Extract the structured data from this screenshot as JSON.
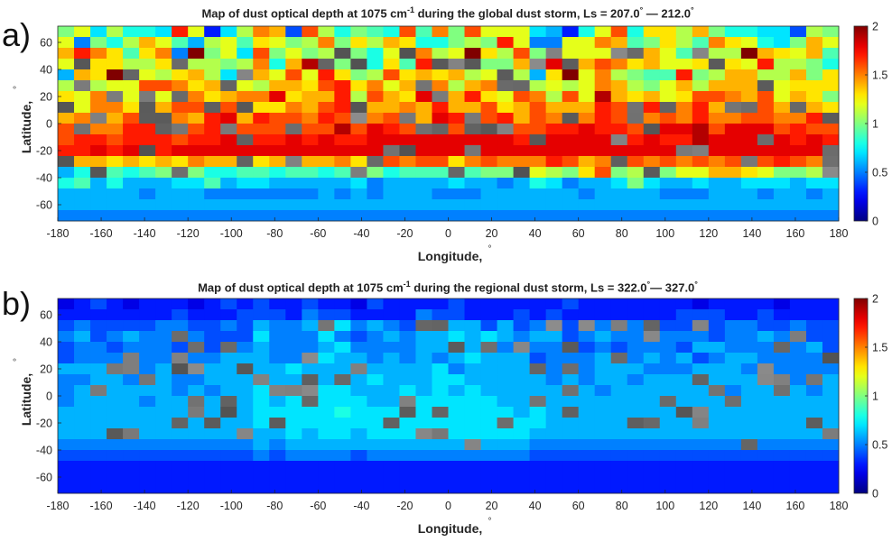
{
  "panels": [
    {
      "letter": "a)",
      "title_pre": "Map of dust optical depth at 1075 cm",
      "title_sup": "-1",
      "title_mid": " during the global dust storm, Ls = 207.0",
      "title_deg1": "°",
      "title_dash": " — 212.0",
      "title_deg2": "°"
    },
    {
      "letter": "b)",
      "title_pre": "Map of dust optical depth at 1075 cm",
      "title_sup": "-1",
      "title_mid": " during the regional dust storm, Ls = 322.0",
      "title_deg1": "°",
      "title_dash": "— 327.0",
      "title_deg2": "°"
    }
  ],
  "chart_data": [
    {
      "type": "heatmap",
      "title": "Map of dust optical depth at 1075 cm-1 during the global dust storm, Ls = 207.0° — 212.0°",
      "xlabel": "Longitude, °",
      "ylabel": "Latitude, °",
      "xlim": [
        -180,
        180
      ],
      "ylim": [
        -72,
        72
      ],
      "xticks": [
        -180,
        -160,
        -140,
        -120,
        -100,
        -80,
        -60,
        -40,
        -20,
        0,
        20,
        40,
        60,
        80,
        100,
        120,
        140,
        160,
        180
      ],
      "yticks": [
        60,
        40,
        20,
        0,
        -20,
        -40,
        -60
      ],
      "colorbar": {
        "range": [
          0,
          2
        ],
        "ticks": [
          "0",
          "0.5",
          "1",
          "1.5",
          "2"
        ],
        "colormap": "jet"
      },
      "cell_size_deg": {
        "lon": 7.5,
        "lat": 4
      },
      "rows_lat_descending": [
        "1.0 1.2 0.7 1.1 0.8 0.8 0.7 1.7 1.2 0.3 0.7 1.1 1.5 1.4 0.4 1.6 1.1 0.8 1.0 0.9 0.8 1.6 0.9 1.5 1.0 1.6 1.2 1.2 1.2 0.7 0.6 0.3 0.8 1.2 1.6 0.8 1.3 1.3 1.1 1.4 1.0 0.8 0.8 0.7 0.7 0.4 1.1 1.0",
        "1.2 0.5 1.0 0.8 1.1 1.4 1.2 0.9 0.6 1.1 1.2 0.9 1.3 1.2 1.0 1.1 1.5 1.0 1.3 1.1 1.4 1.3 0.8 0.8 1.0 1.1 1.0 1.7 1.2 0.5 0.5 1.2 1.2 1.5 1.4 0.9 1.0 1.3 1.1 0.9 1.5 1.3 1.2 0.8 0.7 1.0 1.4 1.2",
        "1.4 1.7 1.5 1.3 0.9 1.3 1.5 0.5 2.0 1.0 1.2 0.7 1.6 1.0 1.2 1.0 1.1 0.8 1.0 0.8 1.2 1.4 1.5 1.1 1.2 2.0 1.3 1.1 1.6 1.0 1.6 1.2 1.2 1.2 1.8 1.2 1.4 1.2 0.9 1.5 1.1 1.1 2.0 1.4 1.3 1.2 1.4 0.9",
        "1.2 0.8 1.3 1.3 1.1 1.1 1.3 1.2 1.1 1.1 1.0 1.1 1.5 0.8 1.4 1.9 1.3 1.0 1.3 0.8 1.3 0.9 1.7 0.8 1.1 1.2 1.0 1.0 1.4 1.5 1.8 1.3 1.4 1.6 1.5 1.3 1.4 1.2 1.2 1.3 1.1 1.3 1.2 1.7 1.1 1.1 1.0 0.8",
        "0.6 1.4 1.3 2.0 1.0 1.2 1.1 1.3 1.4 1.1 0.7 1.6 1.4 1.2 1.6 1.2 1.7 1.3 1.0 1.1 1.6 1.3 1.4 1.3 1.4 1.1 1.2 1.4 1.1 0.6 1.3 2.0 1.2 1.5 1.1 1.0 0.9 0.9 1.7 1.0 1.1 1.4 1.4 1.1 1.1 1.4 1.0 1.3",
        "1.1 1.5 1.1 1.2 1.2 1.6 1.6 1.5 1.3 1.4 1.5 1.2 1.1 1.4 1.4 1.3 1.6 1.7 1.3 1.5 1.2 1.4 1.1 1.5 1.1 1.4 1.5 1.0 1.4 1.1 1.2 1.1 1.2 1.5 1.4 1.1 1.0 1.2 1.4 1.1 1.4 1.4 1.4 1.6 1.2 1.3 1.3 1.3",
        "1.3 1.2 1.5 1.3 1.2 1.4 1.2 1.3 1.5 1.3 1.4 1.5 1.5 1.8 1.3 1.4 1.4 1.7 1.1 1.6 1.4 1.3 1.8 1.5 1.4 1.7 1.3 1.2 1.6 1.5 1.1 1.6 1.2 1.9 1.4 1.3 1.4 1.2 1.3 1.6 1.6 1.5 1.4 1.6 1.2 1.4 1.3 1.0",
        "1.4 1.2 1.5 1.5 1.3 1.4 1.4 1.6 1.6 1.6 1.6 1.3 1.3 1.3 1.5 1.4 1.6 1.7 1.7 1.4 1.4 1.5 1.4 1.7 1.4 1.4 1.6 1.3 1.4 1.6 1.4 1.4 1.4 1.7 1.6 1.7 1.7 1.4 1.5 1.7 1.4 1.4 1.6 1.6 1.4 1.2 1.4 1.3",
        "1.4 1.5 1.5 1.4 1.6 1.4 1.5 1.5 1.4 1.7 1.8 1.4 1.7 1.6 1.6 1.5 1.7 1.6 1.5 1.5 1.6 1.5 1.4 1.8 1.7 1.7 1.6 1.7 1.4 1.6 1.5 1.7 1.5 1.7 1.6 1.5 1.5 1.6 1.5 1.7 1.5 1.5 1.6 1.6 1.5 1.5 1.7 1.5",
        "1.6 1.5 1.5 1.5 1.7 1.7 1.6 1.7 1.6 1.7 1.7 1.6 1.6 1.6 1.6 1.6 1.6 1.9 1.6 1.8 1.7 1.6 1.7 1.9 1.6 1.5 1.7 1.6 1.6 1.6 1.7 1.7 1.8 1.7 1.7 1.6 1.6 1.8 1.8 1.9 1.6 1.8 1.8 1.8 1.6 1.7 1.6 1.6",
        "1.6 1.7 1.7 1.6 1.7 1.7 1.7 1.6 1.7 1.7 1.8 1.7 1.7 1.7 1.8 1.7 1.8 1.7 1.7 1.8 1.8 1.8 1.8 1.8 1.8 1.8 1.8 1.8 1.7 1.7 1.8 1.8 1.8 1.8 1.7 1.7 1.8 1.7 1.7 1.9 1.8 1.8 1.8 1.8 1.8 1.7 1.8 1.7",
        "1.7 1.7 1.8 1.7 1.8 1.7 1.7 1.8 1.8 1.8 1.8 1.8 1.8 1.8 1.8 1.8 1.8 1.8 1.8 1.8 1.8 1.8 1.8 1.8 1.8 1.8 1.8 1.8 1.8 1.8 1.8 1.8 1.8 1.8 1.8 1.8 1.8 1.8 1.8 1.8 1.8 1.8 1.8 1.8 1.8 1.8 1.8 1.8",
        "1.3 1.4 1.4 1.3 1.4 1.3 1.4 1.3 1.5 1.4 1.4 1.4 1.3 1.4 1.4 1.4 1.4 1.5 1.3 1.6 1.6 1.5 1.6 1.6 1.3 1.5 1.6 1.5 1.5 1.5 1.7 1.6 1.4 1.5 1.6 1.6 1.5 1.6 1.5 1.6 1.5 1.6 1.6 1.6 1.7 1.6 1.5 1.4",
        "0.6 0.8 0.9 0.9 0.8 0.9 1.0 0.9 1.0 0.8 0.8 0.9 0.9 0.8 0.9 0.9 0.8 0.9 1.0 1.0 0.8 0.9 0.9 0.9 1.0 0.9 1.0 1.0 1.2 1.2 1.1 1.0 1.3 1.6 1.0 1.1 1.1 1.0 1.2 1.2 1.4 1.4 1.3 1.2 1.0 1.0 1.1 1.3",
        "0.8 0.9 0.6 0.8 0.6 0.6 0.6 0.7 0.7 0.9 0.6 0.7 0.7 0.6 0.6 0.6 0.6 0.6 0.7 0.5 0.6 0.6 0.6 0.6 0.7 0.6 0.6 0.5 0.6 0.8 0.7 0.5 0.6 0.6 0.7 1.0 0.7 0.6 0.6 0.7 0.6 0.6 0.7 0.7 0.7 0.6 0.7 0.7",
        "0.6 0.6 0.6 0.6 0.6 0.5 0.6 0.6 0.6 0.5 0.5 0.5 0.5 0.5 0.5 0.5 0.6 0.5 0.6 0.5 0.6 0.6 0.6 0.5 0.5 0.5 0.6 0.6 0.6 0.6 0.6 0.6 0.5 0.6 0.6 0.6 0.6 0.5 0.5 0.5 0.6 0.6 0.6 0.5 0.6 0.6 0.5 0.6",
        "0.6 0.6 0.6 0.6 0.6 0.6 0.6 0.6 0.6 0.6 0.6 0.6 0.6 0.6 0.6 0.6 0.6 0.6 0.6 0.6 0.6 0.6 0.6 0.6 0.6 0.6 0.6 0.6 0.6 0.6 0.6 0.6 0.6 0.6 0.6 0.6 0.6 0.6 0.6 0.6 0.6 0.6 0.6 0.6 0.6 0.6 0.6 0.6",
        "0.5 0.5 0.5 0.5 0.5 0.5 0.5 0.5 0.5 0.5 0.5 0.5 0.5 0.5 0.5 0.5 0.5 0.5 0.5 0.5 0.5 0.5 0.5 0.5 0.5 0.5 0.5 0.5 0.5 0.5 0.5 0.5 0.5 0.5 0.5 0.5 0.5 0.5 0.5 0.5 0.5 0.5 0.5 0.5 0.5 0.5 0.5 0.5"
      ]
    },
    {
      "type": "heatmap",
      "title": "Map of dust optical depth at 1075 cm-1 during the regional dust storm, Ls = 322.0°— 327.0°",
      "xlabel": "Longitude, °",
      "ylabel": "Latitude, °",
      "xlim": [
        -180,
        180
      ],
      "ylim": [
        -72,
        72
      ],
      "xticks": [
        -180,
        -160,
        -140,
        -120,
        -100,
        -80,
        -60,
        -40,
        -20,
        0,
        20,
        40,
        60,
        80,
        100,
        120,
        140,
        160,
        180
      ],
      "yticks": [
        60,
        40,
        20,
        0,
        -20,
        -40,
        -60
      ],
      "colorbar": {
        "range": [
          0,
          2
        ],
        "ticks": [
          "0",
          "0.5",
          "1",
          "1.5",
          "2"
        ],
        "colormap": "jet"
      },
      "cell_size_deg": {
        "lon": 7.5,
        "lat": 4
      },
      "rows_lat_descending": [
        "0.2 0.3 0.4 0.3 0.2 0.3 0.3 0.3 0.2 0.3 0.4 0.3 0.4 0.3 0.3 0.4 0.3 0.3 0.2 0.4 0.3 0.3 0.3 0.3 0.4 0.3 0.3 0.3 0.3 0.3 0.3 0.4 0.3 0.3 0.3 0.3 0.3 0.3 0.3 0.2 0.3 0.3 0.3 0.3 0.2 0.3 0.3 0.3",
        "0.3 0.3 0.3 0.3 0.3 0.3 0.3 0.4 0.3 0.3 0.3 0.4 0.4 0.4 0.3 0.5 0.4 0.4 0.3 0.3 0.3 0.3 0.5 0.4 0.4 0.3 0.3 0.3 0.4 0.3 0.4 0.3 0.3 0.3 0.3 0.3 0.3 0.3 0.4 0.4 0.4 0.3 0.3 0.4 0.3 0.3 0.3 0.3",
        "0.4 0.5 0.4 0.4 0.4 0.4 0.5 0.5 0.4 0.4 0.5 0.4 0.6 0.5 0.5 0.6 0.6 0.7 0.5 0.6 0.5 0.4 0.5 0.5 0.6 0.6 0.4 0.6 0.4 0.5 0.5 0.4 0.4 0.5 0.4 0.5 0.5 0.4 0.4 0.4 0.4 0.5 0.5 0.4 0.4 0.5 0.4 0.4",
        "0.5 0.6 0.4 0.5 0.6 0.5 0.5 0.4 0.5 0.4 0.4 0.4 0.7 0.5 0.5 0.5 0.7 0.5 0.4 0.5 0.6 0.5 0.6 0.6 0.7 0.6 0.7 0.6 0.5 0.6 0.6 0.4 0.5 0.6 0.5 0.5 0.5 0.5 0.5 0.5 0.4 0.5 0.5 0.6 0.5 0.4 0.4 0.4",
        "0.4 0.5 0.5 0.4 0.5 0.5 0.5 0.4 0.5 0.4 0.6 0.5 0.6 0.5 0.5 0.5 0.6 0.7 0.5 0.5 0.5 0.5 0.6 0.6 0.6 0.6 0.6 0.5 0.5 0.5 0.5 0.4 0.4 0.5 0.4 0.5 0.5 0.5 0.4 0.6 0.6 0.5 0.5 0.5 0.4 0.5 0.6 0.4",
        "0.4 0.5 0.5 0.5 0.6 0.5 0.5 0.4 0.5 0.5 0.6 0.6 0.6 0.5 0.5 0.5 0.7 0.6 0.6 0.5 0.6 0.5 0.6 0.5 0.6 0.7 0.6 0.6 0.6 0.4 0.5 0.5 0.5 0.6 0.5 0.5 0.6 0.5 0.6 0.4 0.5 0.6 0.6 0.5 0.5 0.5 0.5 0.5",
        "0.6 0.6 0.6 0.5 0.5 0.5 0.6 0.5 0.5 0.6 0.6 0.5 0.6 0.6 0.7 0.6 0.6 0.6 0.6 0.6 0.6 0.6 0.6 0.7 0.5 0.6 0.6 0.6 0.6 0.5 0.5 0.5 0.5 0.6 0.6 0.6 0.5 0.5 0.5 0.6 0.6 0.6 0.5 0.6 0.5 0.5 0.5 0.5",
        "0.5 0.5 0.6 0.6 0.5 0.6 0.6 0.5 0.5 0.6 0.6 0.6 0.7 0.6 0.6 0.6 0.6 0.7 0.6 0.7 0.6 0.6 0.6 0.7 0.7 0.6 0.6 0.6 0.6 0.6 0.5 0.6 0.5 0.6 0.6 0.5 0.6 0.6 0.6 0.6 0.6 0.6 0.6 0.6 0.6 0.5 0.6 0.6",
        "0.5 0.6 0.5 0.6 0.6 0.6 0.6 0.5 0.6 0.5 0.6 0.6 0.7 0.6 0.6 0.6 0.7 0.7 0.6 0.6 0.6 0.7 0.6 0.7 0.6 0.7 0.6 0.6 0.6 0.6 0.6 0.6 0.6 0.5 0.6 0.6 0.6 0.6 0.6 0.6 0.6 0.5 0.6 0.6 0.6 0.6 0.5 0.6",
        "0.5 0.6 0.6 0.6 0.6 0.5 0.6 0.6 0.6 0.6 0.6 0.6 0.7 0.6 0.7 0.7 0.7 0.7 0.7 0.6 0.6 0.6 0.7 0.7 0.7 0.7 0.7 0.6 0.6 0.6 0.6 0.6 0.6 0.6 0.6 0.6 0.6 0.6 0.6 0.6 0.6 0.6 0.6 0.6 0.6 0.6 0.6 0.6",
        "0.6 0.6 0.6 0.6 0.6 0.6 0.6 0.6 0.6 0.6 0.6 0.6 0.7 0.7 0.7 0.7 0.7 0.8 0.7 0.7 0.7 0.7 0.7 0.8 0.7 0.7 0.7 0.7 0.6 0.7 0.6 0.6 0.6 0.6 0.6 0.6 0.6 0.6 0.6 0.6 0.6 0.6 0.6 0.6 0.6 0.6 0.6 0.6",
        "0.6 0.6 0.6 0.6 0.6 0.6 0.6 0.6 0.6 0.6 0.6 0.6 0.7 0.7 0.7 0.7 0.7 0.7 0.7 0.7 0.7 0.7 0.7 0.7 0.7 0.7 0.7 0.7 0.7 0.7 0.6 0.6 0.6 0.6 0.6 0.6 0.6 0.6 0.6 0.6 0.6 0.6 0.6 0.6 0.6 0.6 0.6 0.6",
        "0.6 0.6 0.6 0.6 0.6 0.6 0.6 0.6 0.6 0.6 0.6 0.6 0.6 0.6 0.7 0.6 0.7 0.7 0.6 0.7 0.7 0.7 0.7 0.7 0.7 0.7 0.7 0.7 0.7 0.6 0.6 0.6 0.6 0.6 0.6 0.6 0.6 0.6 0.6 0.6 0.6 0.6 0.6 0.6 0.6 0.6 0.6 0.6",
        "0.5 0.5 0.5 0.5 0.5 0.5 0.5 0.5 0.5 0.5 0.5 0.5 0.6 0.5 0.6 0.6 0.6 0.6 0.6 0.6 0.6 0.6 0.6 0.6 0.6 0.6 0.6 0.6 0.6 0.5 0.5 0.5 0.5 0.5 0.5 0.5 0.5 0.5 0.5 0.5 0.5 0.5 0.5 0.5 0.5 0.5 0.5 0.5",
        "0.4 0.4 0.4 0.4 0.4 0.4 0.4 0.4 0.4 0.4 0.4 0.4 0.5 0.4 0.5 0.5 0.5 0.5 0.4 0.5 0.5 0.5 0.5 0.5 0.5 0.5 0.5 0.5 0.5 0.4 0.4 0.4 0.4 0.4 0.4 0.4 0.4 0.4 0.4 0.4 0.4 0.4 0.4 0.4 0.4 0.4 0.4 0.4",
        "0.3 0.3 0.3 0.3 0.3 0.3 0.3 0.3 0.3 0.3 0.3 0.3 0.3 0.3 0.3 0.3 0.3 0.3 0.3 0.3 0.3 0.3 0.3 0.3 0.3 0.3 0.3 0.3 0.3 0.3 0.3 0.3 0.3 0.3 0.3 0.3 0.3 0.3 0.3 0.3 0.3 0.3 0.3 0.3 0.3 0.3 0.3 0.3",
        "0.3 0.3 0.3 0.3 0.3 0.3 0.3 0.3 0.3 0.3 0.3 0.3 0.3 0.3 0.3 0.3 0.3 0.3 0.3 0.3 0.3 0.3 0.3 0.3 0.3 0.3 0.3 0.3 0.3 0.3 0.3 0.3 0.3 0.3 0.3 0.3 0.3 0.3 0.3 0.3 0.3 0.3 0.3 0.3 0.3 0.3 0.3 0.3",
        "0.3 0.3 0.3 0.3 0.3 0.3 0.3 0.3 0.3 0.3 0.3 0.3 0.3 0.3 0.3 0.3 0.3 0.3 0.3 0.3 0.3 0.3 0.3 0.3 0.3 0.3 0.3 0.3 0.3 0.3 0.3 0.3 0.3 0.3 0.3 0.3 0.3 0.3 0.3 0.3 0.3 0.3 0.3 0.3 0.3 0.3 0.3 0.3"
      ]
    }
  ],
  "axes_text": {
    "xlabel": "Longitude,",
    "ylabel": "Latitude,",
    "degree": "°"
  }
}
